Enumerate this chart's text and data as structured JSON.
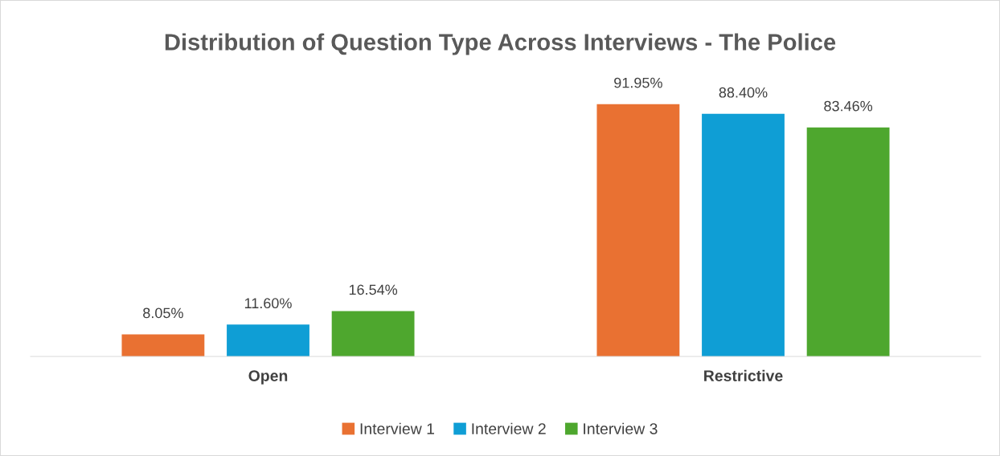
{
  "chart_data": {
    "type": "bar",
    "title": "Distribution of Question Type Across Interviews - The Police",
    "categories": [
      "Open",
      "Restrictive"
    ],
    "series": [
      {
        "name": "Interview 1",
        "color": "#e97132",
        "values": [
          8.05,
          91.95
        ],
        "value_labels": [
          "8.05%",
          "91.95%"
        ]
      },
      {
        "name": "Interview 2",
        "color": "#0f9ed5",
        "values": [
          11.6,
          88.4
        ],
        "value_labels": [
          "11.60%",
          "88.40%"
        ]
      },
      {
        "name": "Interview 3",
        "color": "#4ea72e",
        "values": [
          16.54,
          83.46
        ],
        "value_labels": [
          "16.54%",
          "83.46%"
        ]
      }
    ],
    "tick_labels": "x",
    "legend": "bottom"
  }
}
